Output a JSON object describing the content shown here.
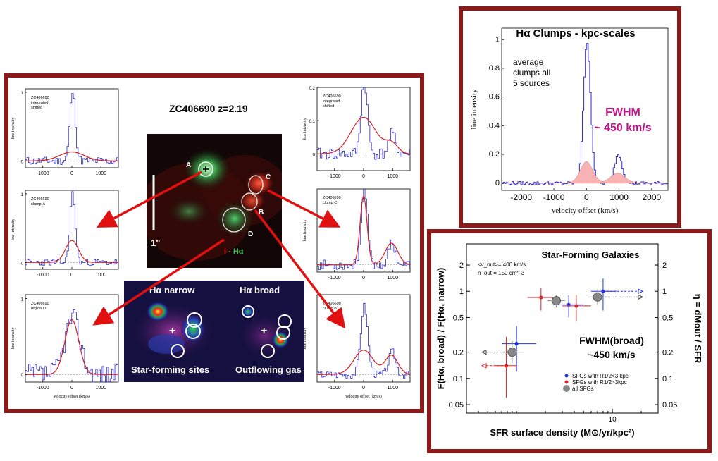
{
  "left_panel": {
    "title": "ZC406690 z=2.19",
    "image": {
      "scale_label": "1\"",
      "caption_i": "I",
      "caption_sep": " - ",
      "caption_ha": "Hα",
      "labels": [
        "A",
        "B",
        "C",
        "D"
      ],
      "colors": {
        "red": "#d32222",
        "green": "#3cb043"
      }
    },
    "maps": {
      "narrow_title": "Hα narrow",
      "broad_title": "Hα broad",
      "narrow_caption": "Star-forming sites",
      "broad_caption": "Outflowing gas"
    }
  },
  "chart_data": [
    {
      "id": "integrated-left",
      "type": "line",
      "label_lines": [
        "ZC406690",
        "integrated",
        "shifted"
      ],
      "ylabel": "line intensity",
      "xlabel": "",
      "xlim": [
        -1600,
        1600
      ],
      "ylim": [
        -0.1,
        1.05
      ],
      "xticks": [
        -1000,
        0,
        1000
      ],
      "yticks": [
        0,
        1
      ],
      "series": [
        {
          "color": "#2a2ad0",
          "kind": "spectrum",
          "peak": 1.0,
          "width": 95,
          "noise": 0.06,
          "seed": 11
        },
        {
          "color": "#d42020",
          "kind": "model",
          "peak": 0.13,
          "width": 420
        }
      ]
    },
    {
      "id": "clump-a",
      "type": "line",
      "label_lines": [
        "ZC406690",
        "clump-A"
      ],
      "ylabel": "line intensity",
      "xlabel": "",
      "xlim": [
        -1600,
        1600
      ],
      "ylim": [
        -0.1,
        1.05
      ],
      "xticks": [
        -1000,
        0,
        1000
      ],
      "yticks": [
        0,
        1
      ],
      "series": [
        {
          "color": "#2a2ad0",
          "kind": "spectrum",
          "peak": 1.0,
          "width": 90,
          "noise": 0.05,
          "seed": 23
        },
        {
          "color": "#d42020",
          "kind": "model",
          "peak": 0.32,
          "width": 220
        }
      ]
    },
    {
      "id": "region-d",
      "type": "line",
      "label_lines": [
        "ZC406690",
        "region D"
      ],
      "ylabel": "line intensity",
      "xlabel": "velocity offset (km/s)",
      "xlim": [
        -1600,
        1600
      ],
      "ylim": [
        -0.1,
        1.05
      ],
      "xticks": [
        -1000,
        0,
        1000
      ],
      "yticks": [
        0,
        1
      ],
      "series": [
        {
          "color": "#2a2ad0",
          "kind": "spectrum",
          "peak": 0.75,
          "width": 260,
          "noise": 0.14,
          "seed": 37
        },
        {
          "color": "#d42020",
          "kind": "model",
          "peak": 0.72,
          "width": 240
        }
      ]
    },
    {
      "id": "integrated-right",
      "type": "line",
      "label_lines": [
        "ZC406690",
        "integrated",
        "shifted"
      ],
      "ylabel": "line intensity",
      "xlabel": "",
      "xlim": [
        -1600,
        1600
      ],
      "ylim": [
        -0.05,
        0.2
      ],
      "xticks": [
        -1000,
        0,
        1000
      ],
      "yticks": [
        0,
        0.1,
        0.2
      ],
      "series": [
        {
          "color": "#2a2ad0",
          "kind": "spectrum",
          "peak": 0.22,
          "width": 110,
          "noise": 0.018,
          "seed": 41,
          "second": 0.06
        },
        {
          "color": "#d42020",
          "kind": "model",
          "peak": 0.11,
          "width": 430,
          "second": 0.03
        }
      ]
    },
    {
      "id": "clump-c",
      "type": "line",
      "label_lines": [
        "ZC406690",
        "clump C"
      ],
      "ylabel": "line intensity",
      "xlabel": "",
      "xlim": [
        -1600,
        1600
      ],
      "ylim": [
        -0.1,
        1.05
      ],
      "xticks": [
        -1000,
        0,
        1000
      ],
      "yticks": [],
      "series": [
        {
          "color": "#2a2ad0",
          "kind": "spectrum",
          "peak": 1.0,
          "width": 110,
          "noise": 0.07,
          "seed": 53,
          "second": 0.3
        },
        {
          "color": "#d42020",
          "kind": "model",
          "peak": 0.95,
          "width": 120,
          "second": 0.3
        }
      ]
    },
    {
      "id": "clump-b",
      "type": "line",
      "label_lines": [
        "ZC406690",
        "clump B"
      ],
      "ylabel": "line intensity",
      "xlabel": "velocity offset (km/s)",
      "xlim": [
        -1600,
        1600
      ],
      "ylim": [
        -0.1,
        1.05
      ],
      "xticks": [
        -1000,
        0,
        1000
      ],
      "yticks": [],
      "series": [
        {
          "color": "#2a2ad0",
          "kind": "spectrum",
          "peak": 0.9,
          "width": 120,
          "noise": 0.05,
          "seed": 67,
          "second": 0.3
        },
        {
          "color": "#d42020",
          "kind": "model",
          "peak": 0.32,
          "width": 330,
          "second": 0.25
        }
      ]
    },
    {
      "id": "average-clumps",
      "type": "line",
      "title": "Hα Clumps  -  kpc-scales",
      "annotation_lines": [
        "average",
        "clumps all",
        "5 sources"
      ],
      "fwhm_lines": [
        "FWHM",
        "~ 450 km/s"
      ],
      "ylabel": "line intensity",
      "xlabel": "velocity offset (km/s)",
      "xlim": [
        -2600,
        2500
      ],
      "ylim": [
        -0.05,
        1.08
      ],
      "xticks": [
        -2000,
        -1000,
        0,
        1000,
        2000
      ],
      "yticks": [
        0.0,
        0.2,
        0.4,
        0.6,
        0.8,
        1.0
      ],
      "series": [
        {
          "color": "#2a2ad0",
          "kind": "spectrum",
          "peak": 0.97,
          "width": 110,
          "noise": 0.012,
          "seed": 79,
          "second": 0.2
        },
        {
          "color": "#f7b3b3",
          "kind": "broad-fill",
          "peak": 0.15,
          "width": 190,
          "second": 0.07
        }
      ]
    },
    {
      "id": "ratio-vs-sfr",
      "type": "scatter",
      "title": "Star-Forming Galaxies",
      "note_lines": [
        "<v_out>= 400 km/s",
        "n_out = 150 cm^-3"
      ],
      "fwhm_lines": [
        "FWHM(broad)",
        "~450 km/s"
      ],
      "xlabel": "SFR surface density (M⊙/yr/kpc²)",
      "ylabel": "F(Hα, broad) / F(Hα, narrow)",
      "ylabel_right": "η = dMout / SFR",
      "xscale": "log",
      "yscale": "log",
      "xlim": [
        0.3,
        30
      ],
      "ylim": [
        0.04,
        3.5
      ],
      "xticks": [
        10
      ],
      "yticks": [
        0.05,
        0.1,
        0.2,
        0.5,
        1,
        2
      ],
      "yticks_right": [
        "0.05",
        "0.1",
        "0.2",
        "0.5",
        "1",
        "2"
      ],
      "legend": [
        {
          "label": "SFGs with R1/2<3 kpc",
          "color": "#2233dd"
        },
        {
          "label": "SFGs with R1/2>3kpc",
          "color": "#dd2222"
        },
        {
          "label": "all SFGs",
          "color": "#888888"
        }
      ],
      "series": [
        {
          "name": "SFGs with R1/2<3 kpc",
          "color": "#2233dd",
          "points": [
            {
              "x": 1.0,
              "y": 0.25,
              "xerr": [
                0.7,
                1.6
              ],
              "yerr": [
                0.12,
                0.4
              ]
            },
            {
              "x": 3.5,
              "y": 0.7,
              "xerr": [
                2.4,
                5.0
              ],
              "yerr": [
                0.5,
                0.9
              ]
            },
            {
              "x": 8.0,
              "y": 1.0,
              "xerr": [
                6.0,
                11.0
              ],
              "yerr": [
                0.6,
                1.4
              ],
              "arrow_right": true
            }
          ]
        },
        {
          "name": "SFGs with R1/2>3kpc",
          "color": "#dd2222",
          "points": [
            {
              "x": 0.78,
              "y": 0.14,
              "xerr": [
                0.6,
                1.0
              ],
              "yerr": [
                0.06,
                0.3
              ],
              "arrow_left": true
            },
            {
              "x": 1.8,
              "y": 0.85,
              "xerr": [
                1.3,
                2.5
              ],
              "yerr": [
                0.6,
                1.1
              ]
            },
            {
              "x": 4.2,
              "y": 0.68,
              "xerr": [
                3.0,
                6.0
              ],
              "yerr": [
                0.45,
                0.9
              ]
            }
          ]
        },
        {
          "name": "all SFGs",
          "color": "#888888",
          "points": [
            {
              "x": 0.9,
              "y": 0.2,
              "xerr": [
                0.7,
                1.2
              ],
              "yerr": [
                0.15,
                0.27
              ],
              "arrow_left": true
            },
            {
              "x": 2.6,
              "y": 0.78,
              "xerr": [
                2.1,
                3.2
              ],
              "yerr": [
                0.65,
                0.9
              ]
            },
            {
              "x": 7.0,
              "y": 0.86,
              "xerr": [
                5.5,
                9.0
              ],
              "yerr": [
                0.7,
                1.05
              ],
              "arrow_right": true
            }
          ]
        }
      ]
    }
  ]
}
